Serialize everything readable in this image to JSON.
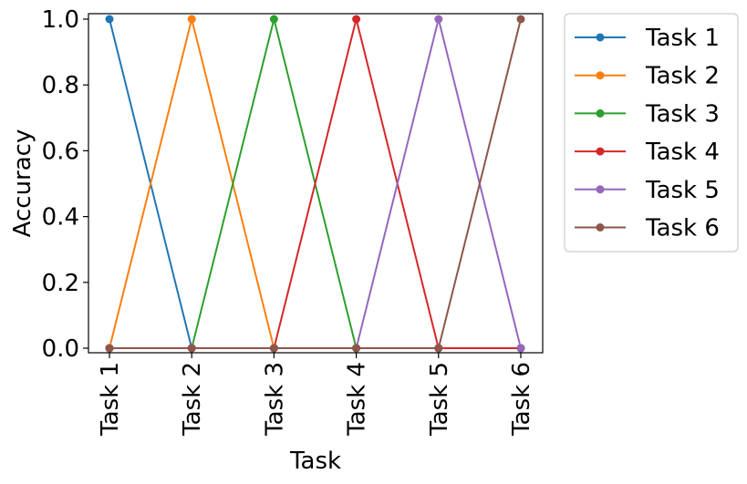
{
  "chart_data": {
    "type": "line",
    "title": "",
    "xlabel": "Task",
    "ylabel": "Accuracy",
    "categories": [
      "Task 1",
      "Task 2",
      "Task 3",
      "Task 4",
      "Task 5",
      "Task 6"
    ],
    "ylim": [
      0.0,
      1.0
    ],
    "yticks": [
      "0.0",
      "0.2",
      "0.4",
      "0.6",
      "0.8",
      "1.0"
    ],
    "grid": false,
    "legend_position": "outside-right-top",
    "series": [
      {
        "name": "Task 1",
        "color": "#1f77b4",
        "values": [
          1,
          0,
          0,
          0,
          0,
          0
        ]
      },
      {
        "name": "Task 2",
        "color": "#ff7f0e",
        "values": [
          0,
          1,
          0,
          0,
          0,
          0
        ]
      },
      {
        "name": "Task 3",
        "color": "#2ca02c",
        "values": [
          0,
          0,
          1,
          0,
          0,
          0
        ]
      },
      {
        "name": "Task 4",
        "color": "#d62728",
        "values": [
          0,
          0,
          0,
          1,
          0,
          0
        ]
      },
      {
        "name": "Task 5",
        "color": "#9467bd",
        "values": [
          0,
          0,
          0,
          0,
          1,
          0
        ]
      },
      {
        "name": "Task 6",
        "color": "#8c564b",
        "values": [
          0,
          0,
          0,
          0,
          0,
          1
        ]
      }
    ]
  }
}
